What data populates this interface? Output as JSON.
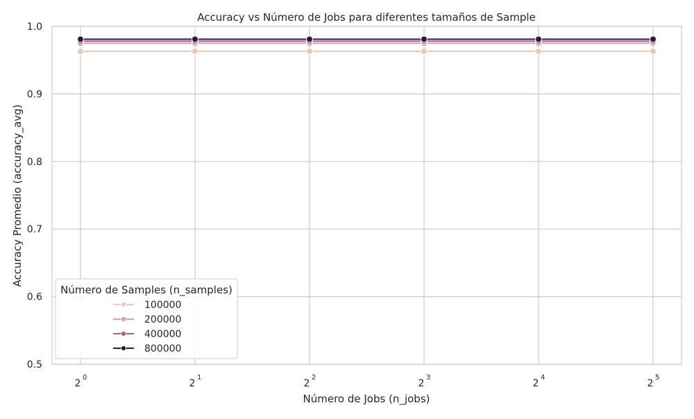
{
  "chart_data": {
    "type": "line",
    "title": "Accuracy vs Número de Jobs para diferentes tamaños de Sample",
    "xlabel": "Número de Jobs (n_jobs)",
    "ylabel": "Accuracy Promedio (accuracy_avg)",
    "x_scale": "log2",
    "x": [
      1,
      2,
      4,
      8,
      16,
      32
    ],
    "x_tick_labels": [
      {
        "base": "2",
        "exp": "0"
      },
      {
        "base": "2",
        "exp": "1"
      },
      {
        "base": "2",
        "exp": "2"
      },
      {
        "base": "2",
        "exp": "3"
      },
      {
        "base": "2",
        "exp": "4"
      },
      {
        "base": "2",
        "exp": "5"
      }
    ],
    "ylim": [
      0.5,
      1.0
    ],
    "y_ticks": [
      "0.5",
      "0.6",
      "0.7",
      "0.8",
      "0.9",
      "1.0"
    ],
    "grid": true,
    "legend": {
      "title": "Número de Samples (n_samples)",
      "placement": "lower-left"
    },
    "series": [
      {
        "name": "100000",
        "color": "#ebc8bd",
        "values": [
          0.963,
          0.963,
          0.963,
          0.963,
          0.963,
          0.963
        ]
      },
      {
        "name": "200000",
        "color": "#d7a0a8",
        "values": [
          0.975,
          0.975,
          0.975,
          0.975,
          0.975,
          0.975
        ]
      },
      {
        "name": "400000",
        "color": "#a65f8c",
        "values": [
          0.978,
          0.978,
          0.978,
          0.978,
          0.978,
          0.978
        ]
      },
      {
        "name": "800000",
        "color": "#2b1a40",
        "values": [
          0.981,
          0.981,
          0.981,
          0.981,
          0.981,
          0.981
        ]
      }
    ]
  }
}
